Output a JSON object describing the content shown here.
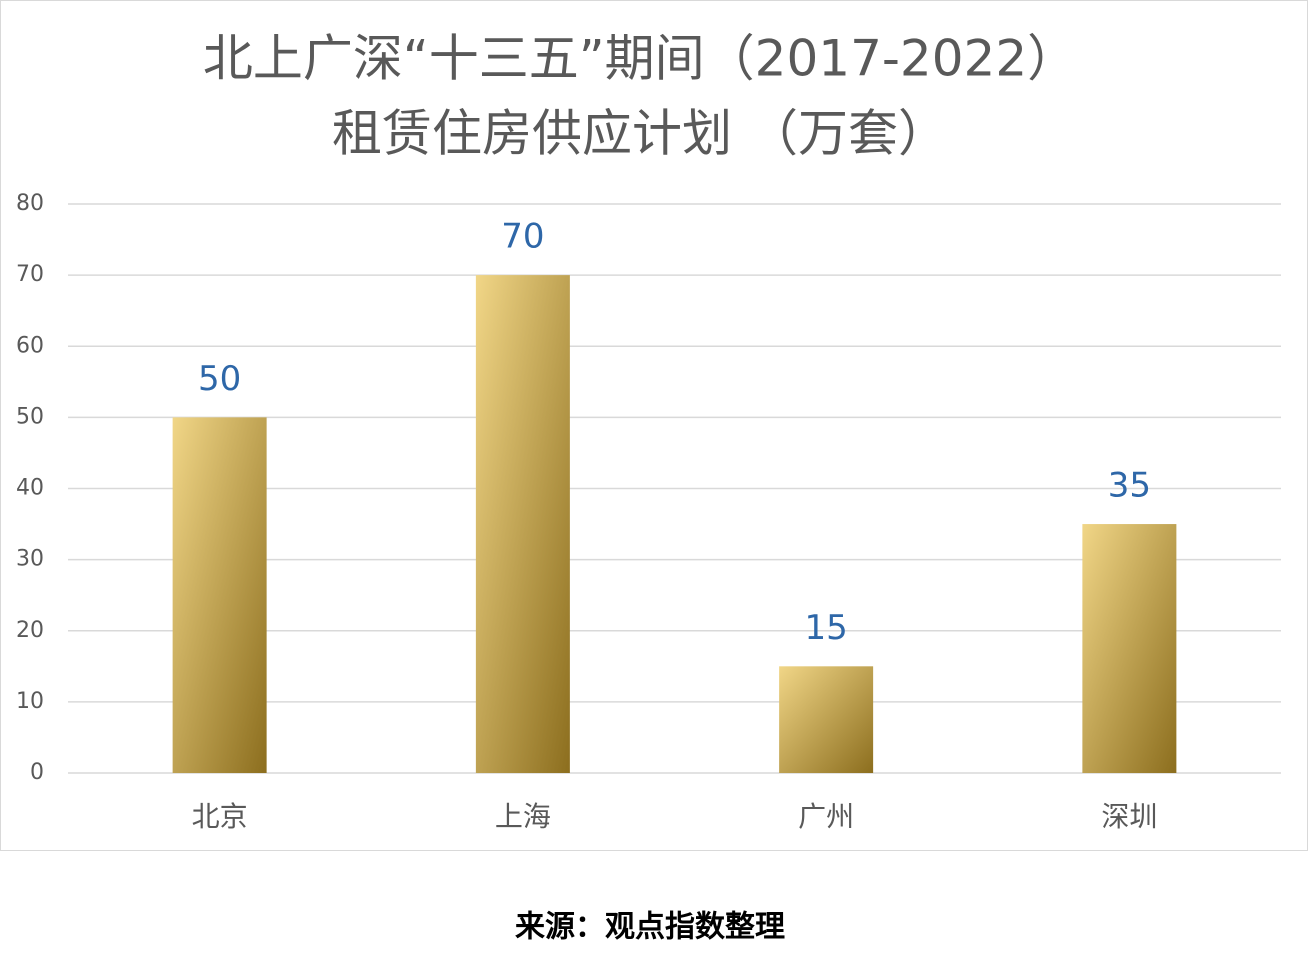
{
  "chart_data": {
    "type": "bar",
    "title": [
      "北上广深“十三五”期间（2017-2022）",
      "租赁住房供应计划 （万套）"
    ],
    "categories": [
      "北京",
      "上海",
      "广州",
      "深圳"
    ],
    "values": [
      50,
      70,
      15,
      35
    ],
    "color": [
      "#f1d687",
      "#8c6e1e"
    ],
    "value_label_color": "#2e67a8",
    "ylim": [
      0,
      80
    ],
    "yticks": [
      0,
      10,
      20,
      30,
      40,
      50,
      60,
      70,
      80
    ],
    "grid": true
  },
  "source": "来源：观点指数整理"
}
